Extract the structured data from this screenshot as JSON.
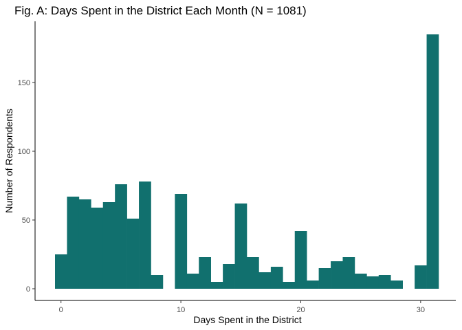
{
  "chart_data": {
    "type": "bar",
    "title": "Fig. A: Days Spent in the District Each Month (N = 1081)",
    "xlabel": "Days Spent in the District",
    "ylabel": "Number of Respondents",
    "x": [
      0,
      1,
      2,
      3,
      4,
      5,
      6,
      7,
      8,
      9,
      10,
      11,
      12,
      13,
      14,
      15,
      16,
      17,
      18,
      19,
      20,
      21,
      22,
      23,
      24,
      25,
      26,
      27,
      28,
      29,
      30,
      31
    ],
    "values": [
      25,
      67,
      65,
      59,
      63,
      76,
      51,
      78,
      10,
      0,
      69,
      11,
      23,
      5,
      18,
      62,
      23,
      12,
      16,
      5,
      42,
      6,
      15,
      20,
      23,
      11,
      9,
      10,
      6,
      0,
      17,
      185
    ],
    "xlim": [
      -0.5,
      31.5
    ],
    "ylim": [
      0,
      185
    ],
    "xticks": [
      0,
      10,
      20,
      30
    ],
    "xtick_labels": [
      "0",
      "10",
      "20",
      "30"
    ],
    "yticks": [
      0,
      50,
      100,
      150
    ],
    "ytick_labels": [
      "0",
      "50",
      "100",
      "150"
    ],
    "bar_color": "#11706e",
    "grid": false,
    "legend": "none"
  }
}
